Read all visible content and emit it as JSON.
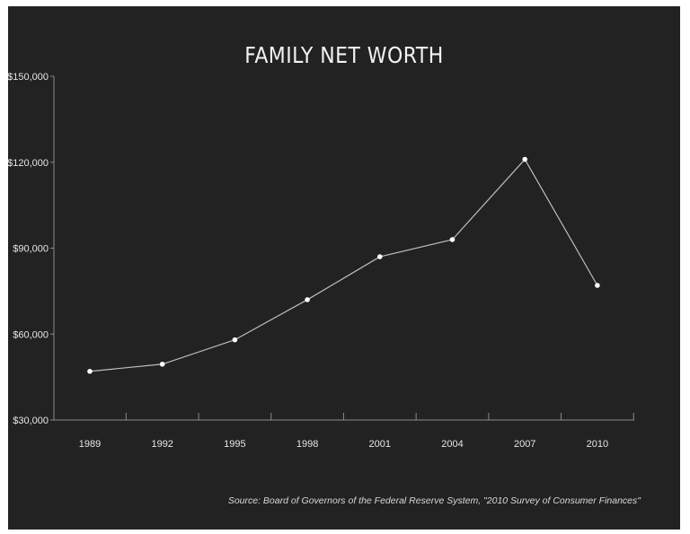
{
  "chart_data": {
    "type": "line",
    "title": "FAMILY NET WORTH",
    "source": "Source: Board of Governors of the Federal Reserve System, \"2010 Survey of Consumer Finances\"",
    "x": [
      "1989",
      "1992",
      "1995",
      "1998",
      "2001",
      "2004",
      "2007",
      "2010"
    ],
    "series": [
      {
        "values": [
          47000,
          49500,
          58000,
          72000,
          87000,
          93000,
          121000,
          77000
        ]
      }
    ],
    "yticks": [
      30000,
      60000,
      90000,
      120000,
      150000
    ],
    "ytick_labels": [
      "$30,000",
      "$60,000",
      "$90,000",
      "$120,000",
      "$150,000"
    ],
    "ylim": [
      30000,
      150000
    ],
    "grid": false,
    "colors": {
      "background": "#222222",
      "line": "#bdbdbd",
      "marker": "#ffffff",
      "axis": "#8a8a8a",
      "text": "#e6e6e6"
    }
  }
}
